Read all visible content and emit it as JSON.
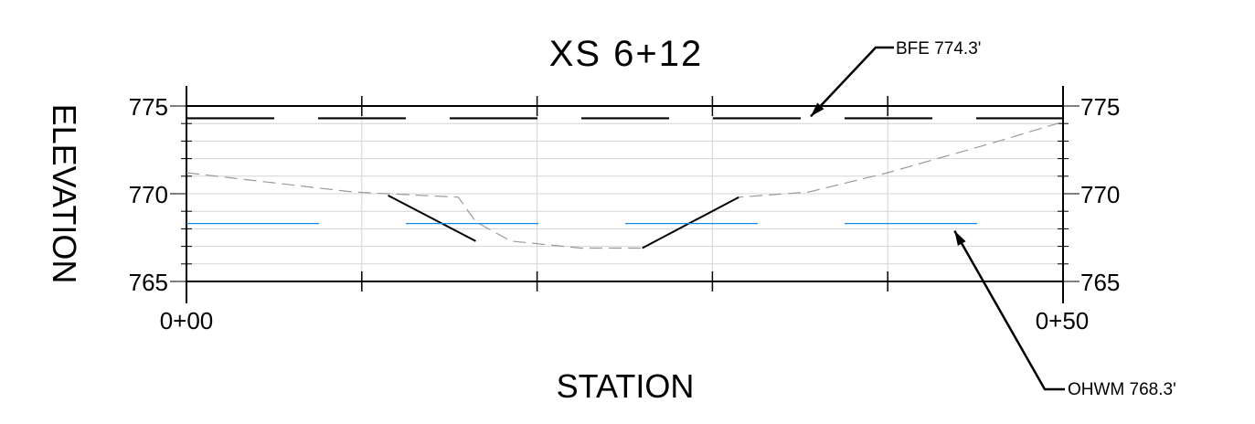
{
  "chart_data": {
    "type": "line",
    "title": "XS  6+12",
    "xlabel": "STATION",
    "ylabel": "ELEVATION",
    "x_range": [
      0,
      50
    ],
    "y_range": [
      765,
      775
    ],
    "x_tick_labels": [
      "0+00",
      "0+50"
    ],
    "y_tick_labels_left": [
      "775",
      "770",
      "765"
    ],
    "y_tick_labels_right": [
      "775",
      "770",
      "765"
    ],
    "grid": true,
    "series": [
      {
        "name": "",
        "style": "dashed-gray",
        "color": "#9a9a9a",
        "points": [
          [
            0,
            771.2
          ],
          [
            9.5,
            770.1
          ],
          [
            15.5,
            769.8
          ],
          [
            16.5,
            768.4
          ],
          [
            18.5,
            767.3
          ],
          [
            22.5,
            766.9
          ],
          [
            26,
            766.9
          ],
          [
            29,
            768.5
          ],
          [
            31.5,
            769.8
          ],
          [
            35.5,
            770.1
          ],
          [
            40,
            771.2
          ],
          [
            46,
            772.9
          ],
          [
            50,
            774.1
          ]
        ]
      },
      {
        "name": "",
        "style": "solid-black",
        "color": "#000000",
        "segments": [
          [
            [
              11.5,
              769.9
            ],
            [
              16.5,
              767.3
            ]
          ],
          [
            [
              26,
              766.9
            ],
            [
              31.5,
              769.8
            ]
          ]
        ]
      },
      {
        "name": "BFE",
        "style": "long-dash-black",
        "color": "#000000",
        "y": 774.3
      },
      {
        "name": "OHWM",
        "style": "dashed-blue",
        "color": "#1a8ae0",
        "y": 768.3
      }
    ],
    "annotations": [
      {
        "id": "bfe",
        "text": "BFE 774.3'",
        "points_to": [
          35.5,
          774.3
        ]
      },
      {
        "id": "ohwm",
        "text": "OHWM 768.3'",
        "points_to": [
          43.5,
          768.3
        ]
      }
    ]
  }
}
